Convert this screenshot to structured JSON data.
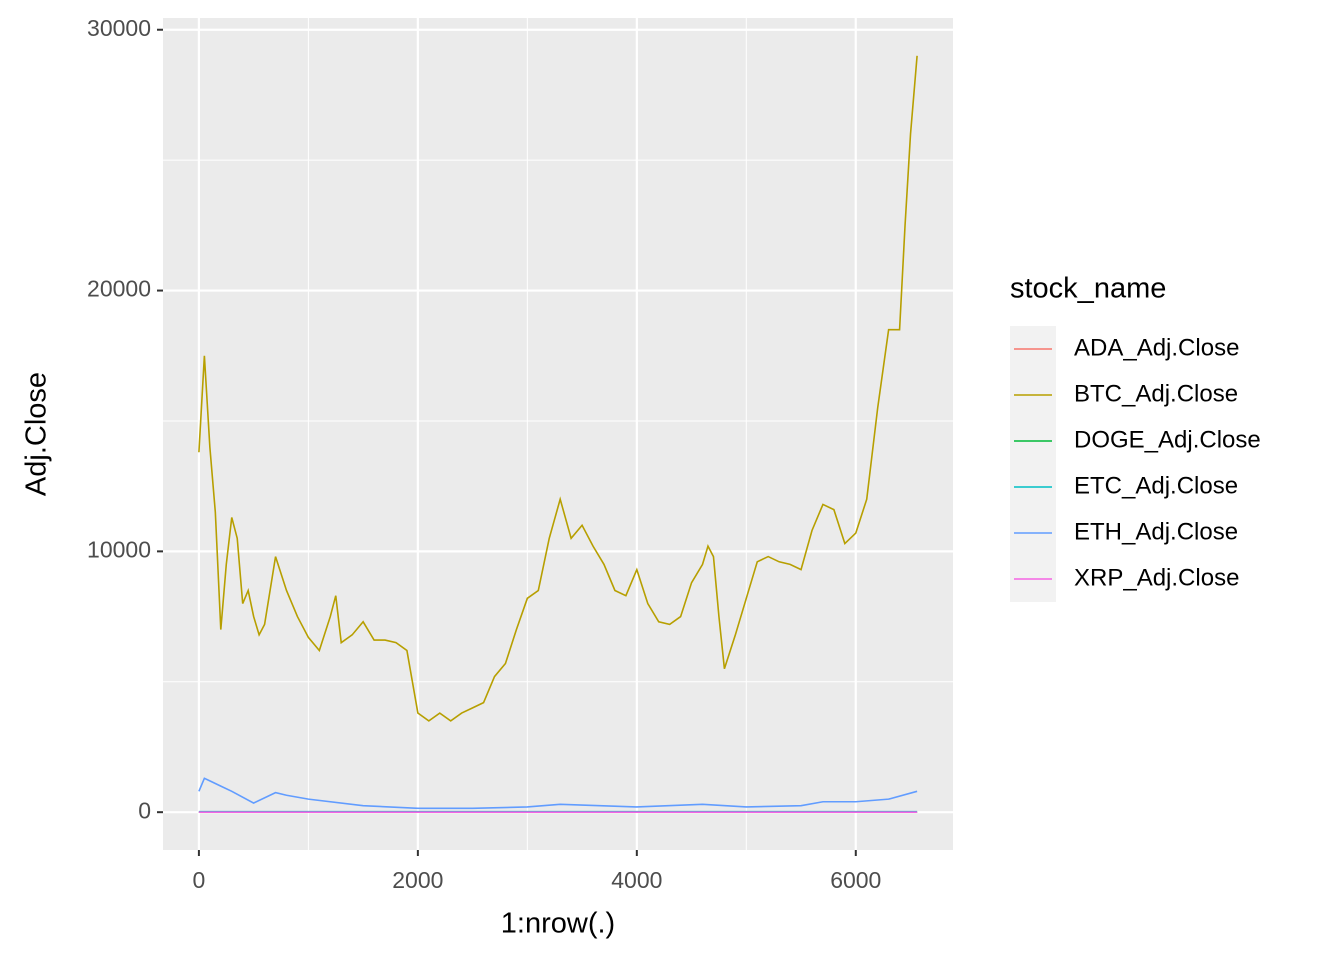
{
  "chart_data": {
    "type": "line",
    "xlabel": "1:nrow(.)",
    "ylabel": "Adj.Close",
    "legend_title": "stock_name",
    "legend_position": "right",
    "xlim": [
      -328,
      6888
    ],
    "xticks": [
      0,
      2000,
      4000,
      6000
    ],
    "ylim": [
      -1450,
      30450
    ],
    "yticks": [
      0,
      10000,
      20000,
      30000
    ],
    "grid": true,
    "series": [
      {
        "name": "ADA_Adj.Close",
        "color": "#F8766D",
        "x": [
          0,
          6560
        ],
        "values": [
          1,
          1
        ]
      },
      {
        "name": "BTC_Adj.Close",
        "color": "#B79F00",
        "x": [
          0,
          50,
          100,
          150,
          200,
          250,
          300,
          350,
          400,
          450,
          500,
          550,
          600,
          700,
          800,
          900,
          1000,
          1100,
          1200,
          1250,
          1300,
          1400,
          1500,
          1600,
          1700,
          1800,
          1900,
          2000,
          2100,
          2200,
          2300,
          2400,
          2500,
          2600,
          2700,
          2800,
          2900,
          3000,
          3100,
          3200,
          3300,
          3400,
          3500,
          3600,
          3700,
          3800,
          3900,
          4000,
          4100,
          4200,
          4300,
          4400,
          4500,
          4600,
          4650,
          4700,
          4750,
          4800,
          4900,
          5000,
          5100,
          5200,
          5300,
          5400,
          5500,
          5600,
          5700,
          5800,
          5900,
          6000,
          6100,
          6200,
          6300,
          6400,
          6450,
          6500,
          6560
        ],
        "values": [
          13800,
          17500,
          14000,
          11500,
          7000,
          9500,
          11300,
          10500,
          8000,
          8500,
          7500,
          6800,
          7200,
          9800,
          8500,
          7500,
          6700,
          6200,
          7500,
          8300,
          6500,
          6800,
          7300,
          6600,
          6600,
          6500,
          6200,
          3800,
          3500,
          3800,
          3500,
          3800,
          4000,
          4200,
          5200,
          5700,
          7000,
          8200,
          8500,
          10500,
          12000,
          10500,
          11000,
          10200,
          9500,
          8500,
          8300,
          9300,
          8000,
          7300,
          7200,
          7500,
          8800,
          9500,
          10200,
          9800,
          7500,
          5500,
          6800,
          8200,
          9600,
          9800,
          9600,
          9500,
          9300,
          10800,
          11800,
          11600,
          10300,
          10700,
          12000,
          15500,
          18500,
          18500,
          22500,
          26000,
          29000
        ]
      },
      {
        "name": "DOGE_Adj.Close",
        "color": "#00BA38",
        "x": [
          0,
          6560
        ],
        "values": [
          0.1,
          0.1
        ]
      },
      {
        "name": "ETC_Adj.Close",
        "color": "#00BFC4",
        "x": [
          0,
          6560
        ],
        "values": [
          20,
          20
        ]
      },
      {
        "name": "ETH_Adj.Close",
        "color": "#619CFF",
        "x": [
          0,
          50,
          100,
          200,
          300,
          500,
          700,
          800,
          1000,
          1500,
          2000,
          2500,
          3000,
          3300,
          4000,
          4600,
          5000,
          5500,
          5700,
          6000,
          6300,
          6560
        ],
        "values": [
          800,
          1300,
          1200,
          1000,
          800,
          350,
          750,
          650,
          500,
          250,
          150,
          150,
          200,
          300,
          200,
          300,
          200,
          250,
          400,
          400,
          500,
          800
        ]
      },
      {
        "name": "XRP_Adj.Close",
        "color": "#F564E3",
        "x": [
          0,
          6560
        ],
        "values": [
          0.5,
          0.5
        ]
      }
    ]
  }
}
